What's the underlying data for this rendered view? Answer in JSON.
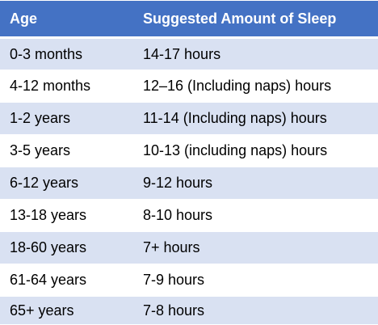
{
  "table": {
    "headers": {
      "age": "Age",
      "amount": "Suggested Amount of Sleep"
    },
    "rows": [
      {
        "age": "0-3 months",
        "amount": "14-17 hours"
      },
      {
        "age": "4-12 months",
        "amount": "12–16 (Including naps) hours"
      },
      {
        "age": "1-2 years",
        "amount": "11-14 (Including naps) hours"
      },
      {
        "age": "3-5 years",
        "amount": "10-13 (including naps) hours"
      },
      {
        "age": "6-12 years",
        "amount": "9-12 hours"
      },
      {
        "age": "13-18 years",
        "amount": "8-10 hours"
      },
      {
        "age": "18-60 years",
        "amount": "7+ hours"
      },
      {
        "age": "61-64 years",
        "amount": "7-9 hours"
      },
      {
        "age": "65+ years",
        "amount": "7-8 hours"
      }
    ]
  },
  "colors": {
    "header_background": "#4472c4",
    "header_text": "#ffffff",
    "band_background": "#d9e1f2",
    "plain_background": "#ffffff"
  }
}
